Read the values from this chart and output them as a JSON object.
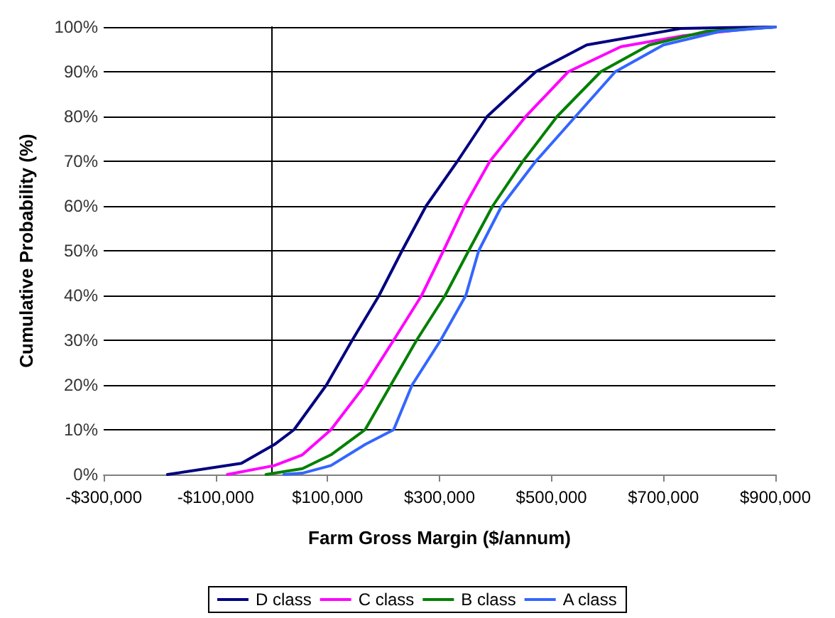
{
  "chart_data": {
    "type": "line",
    "xlabel": "Farm Gross Margin ($/annum)",
    "ylabel": "Cumulative Probability (%)",
    "xlim": [
      -300000,
      900000
    ],
    "xticks": [
      {
        "value": -300000,
        "label": "-$300,000"
      },
      {
        "value": -100000,
        "label": "-$100,000"
      },
      {
        "value": 100000,
        "label": "$100,000"
      },
      {
        "value": 300000,
        "label": "$300,000"
      },
      {
        "value": 500000,
        "label": "$500,000"
      },
      {
        "value": 700000,
        "label": "$700,000"
      },
      {
        "value": 900000,
        "label": "$900,000"
      }
    ],
    "ylim": [
      0,
      100
    ],
    "yticks": [
      {
        "value": 0,
        "label": "0%"
      },
      {
        "value": 10,
        "label": "10%"
      },
      {
        "value": 20,
        "label": "20%"
      },
      {
        "value": 30,
        "label": "30%"
      },
      {
        "value": 40,
        "label": "40%"
      },
      {
        "value": 50,
        "label": "50%"
      },
      {
        "value": 60,
        "label": "60%"
      },
      {
        "value": 70,
        "label": "70%"
      },
      {
        "value": 80,
        "label": "80%"
      },
      {
        "value": 90,
        "label": "90%"
      },
      {
        "value": 100,
        "label": "100%"
      }
    ],
    "grid": "y",
    "legend": "bottom",
    "marker": "none",
    "line_style": "solid",
    "series": [
      {
        "name": "D class",
        "color": "#000080",
        "x": [
          -186000,
          -54000,
          5000,
          40000,
          98000,
          144000,
          192000,
          233000,
          276000,
          332000,
          385000,
          472000,
          563000,
          733000,
          900000
        ],
        "values": [
          0,
          2.5,
          6.7,
          10,
          20,
          30,
          40,
          50,
          60,
          70,
          80,
          90,
          96,
          99.7,
          100
        ]
      },
      {
        "name": "C class",
        "color": "#ff00ff",
        "x": [
          -79000,
          5000,
          55000,
          106000,
          167000,
          218000,
          268000,
          307000,
          345000,
          390000,
          454000,
          530000,
          624000,
          733000,
          860000,
          900000
        ],
        "values": [
          0,
          2,
          4.4,
          10,
          20,
          30,
          40,
          50,
          60,
          70,
          80,
          90,
          95.6,
          98,
          99.7,
          100
        ]
      },
      {
        "name": "B class",
        "color": "#008000",
        "x": [
          -10000,
          55000,
          106000,
          167000,
          213000,
          259000,
          310000,
          352000,
          395000,
          449000,
          510000,
          588000,
          675000,
          776000,
          900000
        ],
        "values": [
          0,
          1.3,
          4.4,
          10,
          20,
          30,
          40,
          50,
          60,
          70,
          80,
          90,
          96,
          99,
          100
        ]
      },
      {
        "name": "A class",
        "color": "#3366ff",
        "x": [
          22000,
          55000,
          106000,
          167000,
          218000,
          251000,
          302000,
          347000,
          370000,
          411000,
          472000,
          543000,
          614000,
          700000,
          801000,
          900000
        ],
        "values": [
          0,
          0.3,
          2,
          6.7,
          10,
          20,
          30,
          40,
          50,
          60,
          70,
          80,
          90,
          96,
          99,
          100
        ]
      }
    ]
  }
}
